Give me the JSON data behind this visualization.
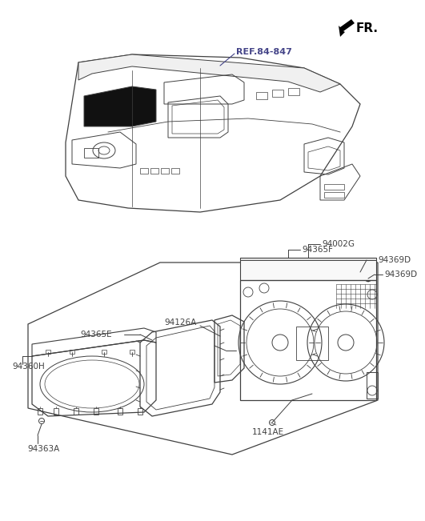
{
  "bg_color": "#ffffff",
  "line_color": "#404040",
  "ref_color": "#444488",
  "fr_label": "FR.",
  "ref_label": "REF.84-847",
  "label_94002G": "94002G",
  "label_94365F": "94365F",
  "label_94369D": "94369D",
  "label_94126A": "94126A",
  "label_94365E": "94365E",
  "label_94360H": "94360H",
  "label_94363A": "94363A",
  "label_1141AE": "1141AE"
}
